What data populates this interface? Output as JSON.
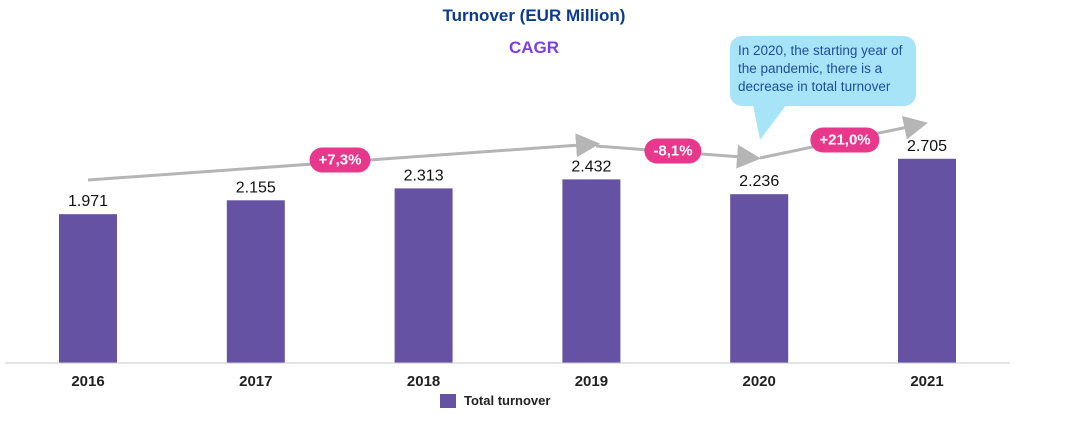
{
  "chart_data": {
    "type": "bar",
    "title": "Turnover (EUR Million)",
    "subtitle": "CAGR",
    "categories": [
      "2016",
      "2017",
      "2018",
      "2019",
      "2020",
      "2021"
    ],
    "series": [
      {
        "name": "Total turnover",
        "values": [
          1.971,
          2.155,
          2.313,
          2.432,
          2.236,
          2.705
        ],
        "labels": [
          "1.971",
          "2.155",
          "2.313",
          "2.432",
          "2.236",
          "2.705"
        ],
        "color": "#6652a3"
      }
    ],
    "ylim": [
      0,
      2.705
    ],
    "grid": false,
    "legend": "bottom",
    "annotations": {
      "cagr": [
        {
          "from": "2016",
          "to": "2019",
          "label": "+7,3%"
        },
        {
          "from": "2019",
          "to": "2020",
          "label": "-8,1%"
        },
        {
          "from": "2020",
          "to": "2021",
          "label": "+21,0%"
        }
      ],
      "callout": "In 2020, the starting year of the pandemic, there is a decrease in total turnover",
      "badge_color": "#e8388c",
      "callout_color": "#a8e4f8"
    }
  }
}
